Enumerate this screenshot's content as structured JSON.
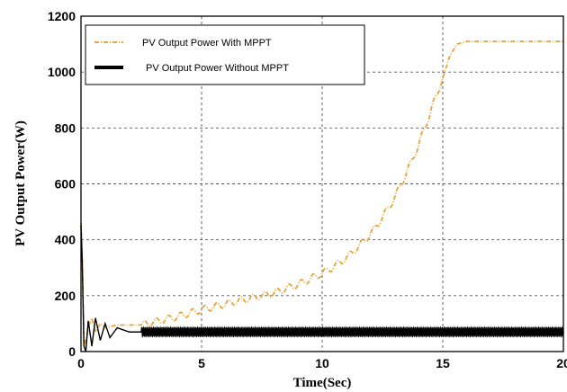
{
  "chart_data": {
    "type": "line",
    "title": "",
    "xlabel": "Time(Sec)",
    "ylabel": "PV Output Power(W)",
    "xlim": [
      0,
      20
    ],
    "ylim": [
      0,
      1200
    ],
    "xticks": [
      "0",
      "5",
      "10",
      "15",
      "20"
    ],
    "yticks": [
      "0",
      "200",
      "400",
      "600",
      "800",
      "1000",
      "1200"
    ],
    "grid": true,
    "legend_position": "top-left",
    "series": [
      {
        "name": "PV Output Power  With MPPT",
        "color": "#e8a33a",
        "style": "dash-dot",
        "oscillation": {
          "amplitude": 12,
          "period": 0.5,
          "start": 2.5,
          "end": 15
        },
        "x": [
          0,
          0.05,
          0.12,
          0.2,
          0.3,
          0.45,
          0.6,
          0.8,
          1.0,
          1.5,
          2.0,
          2.5,
          3,
          4,
          5,
          6,
          7,
          8,
          9,
          10,
          10.5,
          11,
          11.5,
          12,
          12.5,
          13,
          13.5,
          14,
          14.5,
          15,
          15.3,
          15.6,
          16,
          17,
          18,
          19,
          20
        ],
        "y": [
          460,
          340,
          60,
          20,
          90,
          120,
          70,
          100,
          85,
          95,
          95,
          95,
          105,
          125,
          150,
          170,
          190,
          210,
          240,
          280,
          305,
          335,
          375,
          420,
          480,
          550,
          640,
          740,
          860,
          980,
          1060,
          1100,
          1110,
          1110,
          1110,
          1110,
          1110
        ]
      },
      {
        "name": "PV Output Power   Without MPPT",
        "color": "#000000",
        "style": "solid",
        "oscillation": {
          "amplitude": 15,
          "period": 0.07,
          "start": 2.5,
          "end": 20
        },
        "x": [
          0,
          0.05,
          0.12,
          0.2,
          0.3,
          0.45,
          0.6,
          0.8,
          1.0,
          1.2,
          1.5,
          2.0,
          2.5,
          5,
          10,
          15,
          20
        ],
        "y": [
          450,
          330,
          20,
          0,
          110,
          20,
          120,
          40,
          100,
          50,
          85,
          70,
          70,
          70,
          70,
          70,
          70
        ]
      }
    ]
  }
}
